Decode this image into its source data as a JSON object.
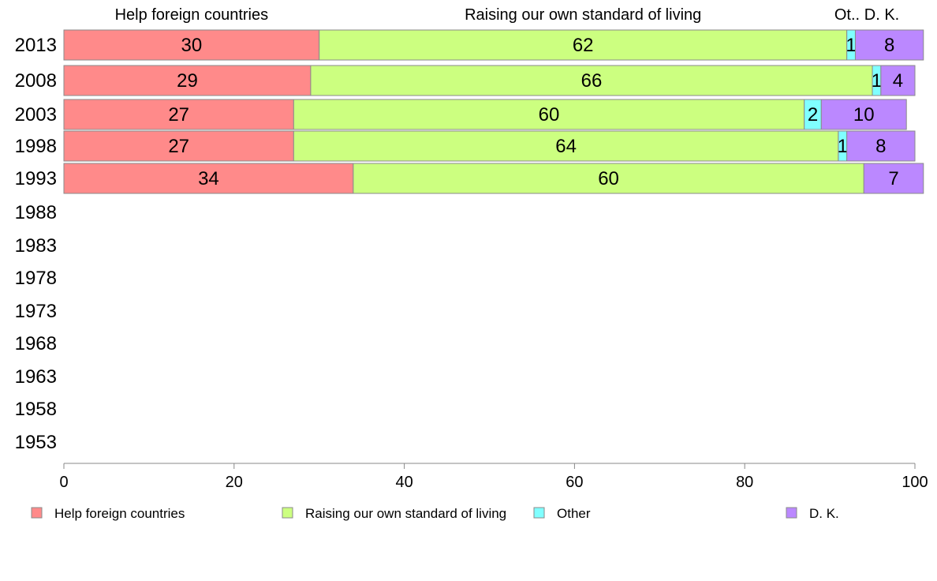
{
  "chart_data": {
    "type": "bar",
    "orientation": "horizontal",
    "stacked": true,
    "categories": [
      "2013",
      "2008",
      "2003",
      "1998",
      "1993",
      "1988",
      "1983",
      "1978",
      "1973",
      "1968",
      "1963",
      "1958",
      "1953"
    ],
    "series": [
      {
        "name": "Help foreign countries",
        "color": "#ff8a8a",
        "values": [
          30,
          29,
          27,
          27,
          34,
          null,
          null,
          null,
          null,
          null,
          null,
          null,
          null
        ]
      },
      {
        "name": "Raising our own standard of living",
        "color": "#ccff80",
        "values": [
          62,
          66,
          60,
          64,
          60,
          null,
          null,
          null,
          null,
          null,
          null,
          null,
          null
        ]
      },
      {
        "name": "Other",
        "color": "#80ffff",
        "values": [
          1,
          1,
          2,
          1,
          0,
          null,
          null,
          null,
          null,
          null,
          null,
          null,
          null
        ]
      },
      {
        "name": "D. K.",
        "color": "#bb88ff",
        "values": [
          8,
          4,
          10,
          8,
          7,
          null,
          null,
          null,
          null,
          null,
          null,
          null,
          null
        ]
      }
    ],
    "top_labels": [
      "Help foreign countries",
      "Raising our own standard of living",
      "Ot..",
      "D. K."
    ],
    "xlim": [
      0,
      100
    ],
    "xticks": [
      0,
      20,
      40,
      60,
      80,
      100
    ],
    "title": "",
    "xlabel": "",
    "ylabel": "",
    "grid": false,
    "legend_position": "bottom"
  }
}
